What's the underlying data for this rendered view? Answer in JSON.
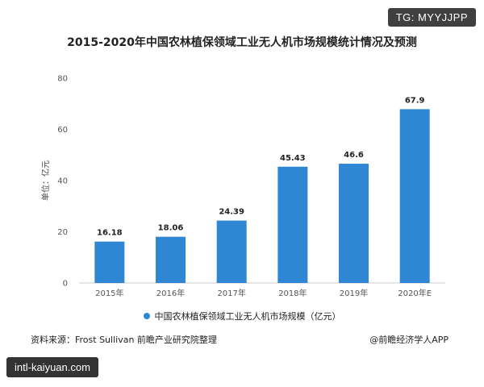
{
  "badges": {
    "top_right": "TG: MYYJJPP",
    "bottom_left": "intl-kaiyuan.com"
  },
  "chart_data": {
    "type": "bar",
    "title": "2015-2020年中国农林植保领域工业无人机市场规模统计情况及预测",
    "ylabel": "单位：亿元",
    "categories": [
      "2015年",
      "2016年",
      "2017年",
      "2018年",
      "2019年",
      "2020年E"
    ],
    "series": [
      {
        "name": "中国农林植保领域工业无人机市场规模（亿元）",
        "values": [
          16.18,
          18.06,
          24.39,
          45.43,
          46.6,
          67.9
        ]
      }
    ],
    "data_labels": [
      "16.18",
      "18.06",
      "24.39",
      "45.43",
      "46.6",
      "67.9"
    ],
    "ylim": [
      0,
      80
    ],
    "yticks": [
      0,
      20,
      40,
      60,
      80
    ],
    "grid": false,
    "legend": "bottom",
    "bar_color": "#2f87d4"
  },
  "footer": {
    "source": "资料来源：Frost Sullivan 前瞻产业研究院整理",
    "brand": "@前瞻经济学人APP"
  }
}
